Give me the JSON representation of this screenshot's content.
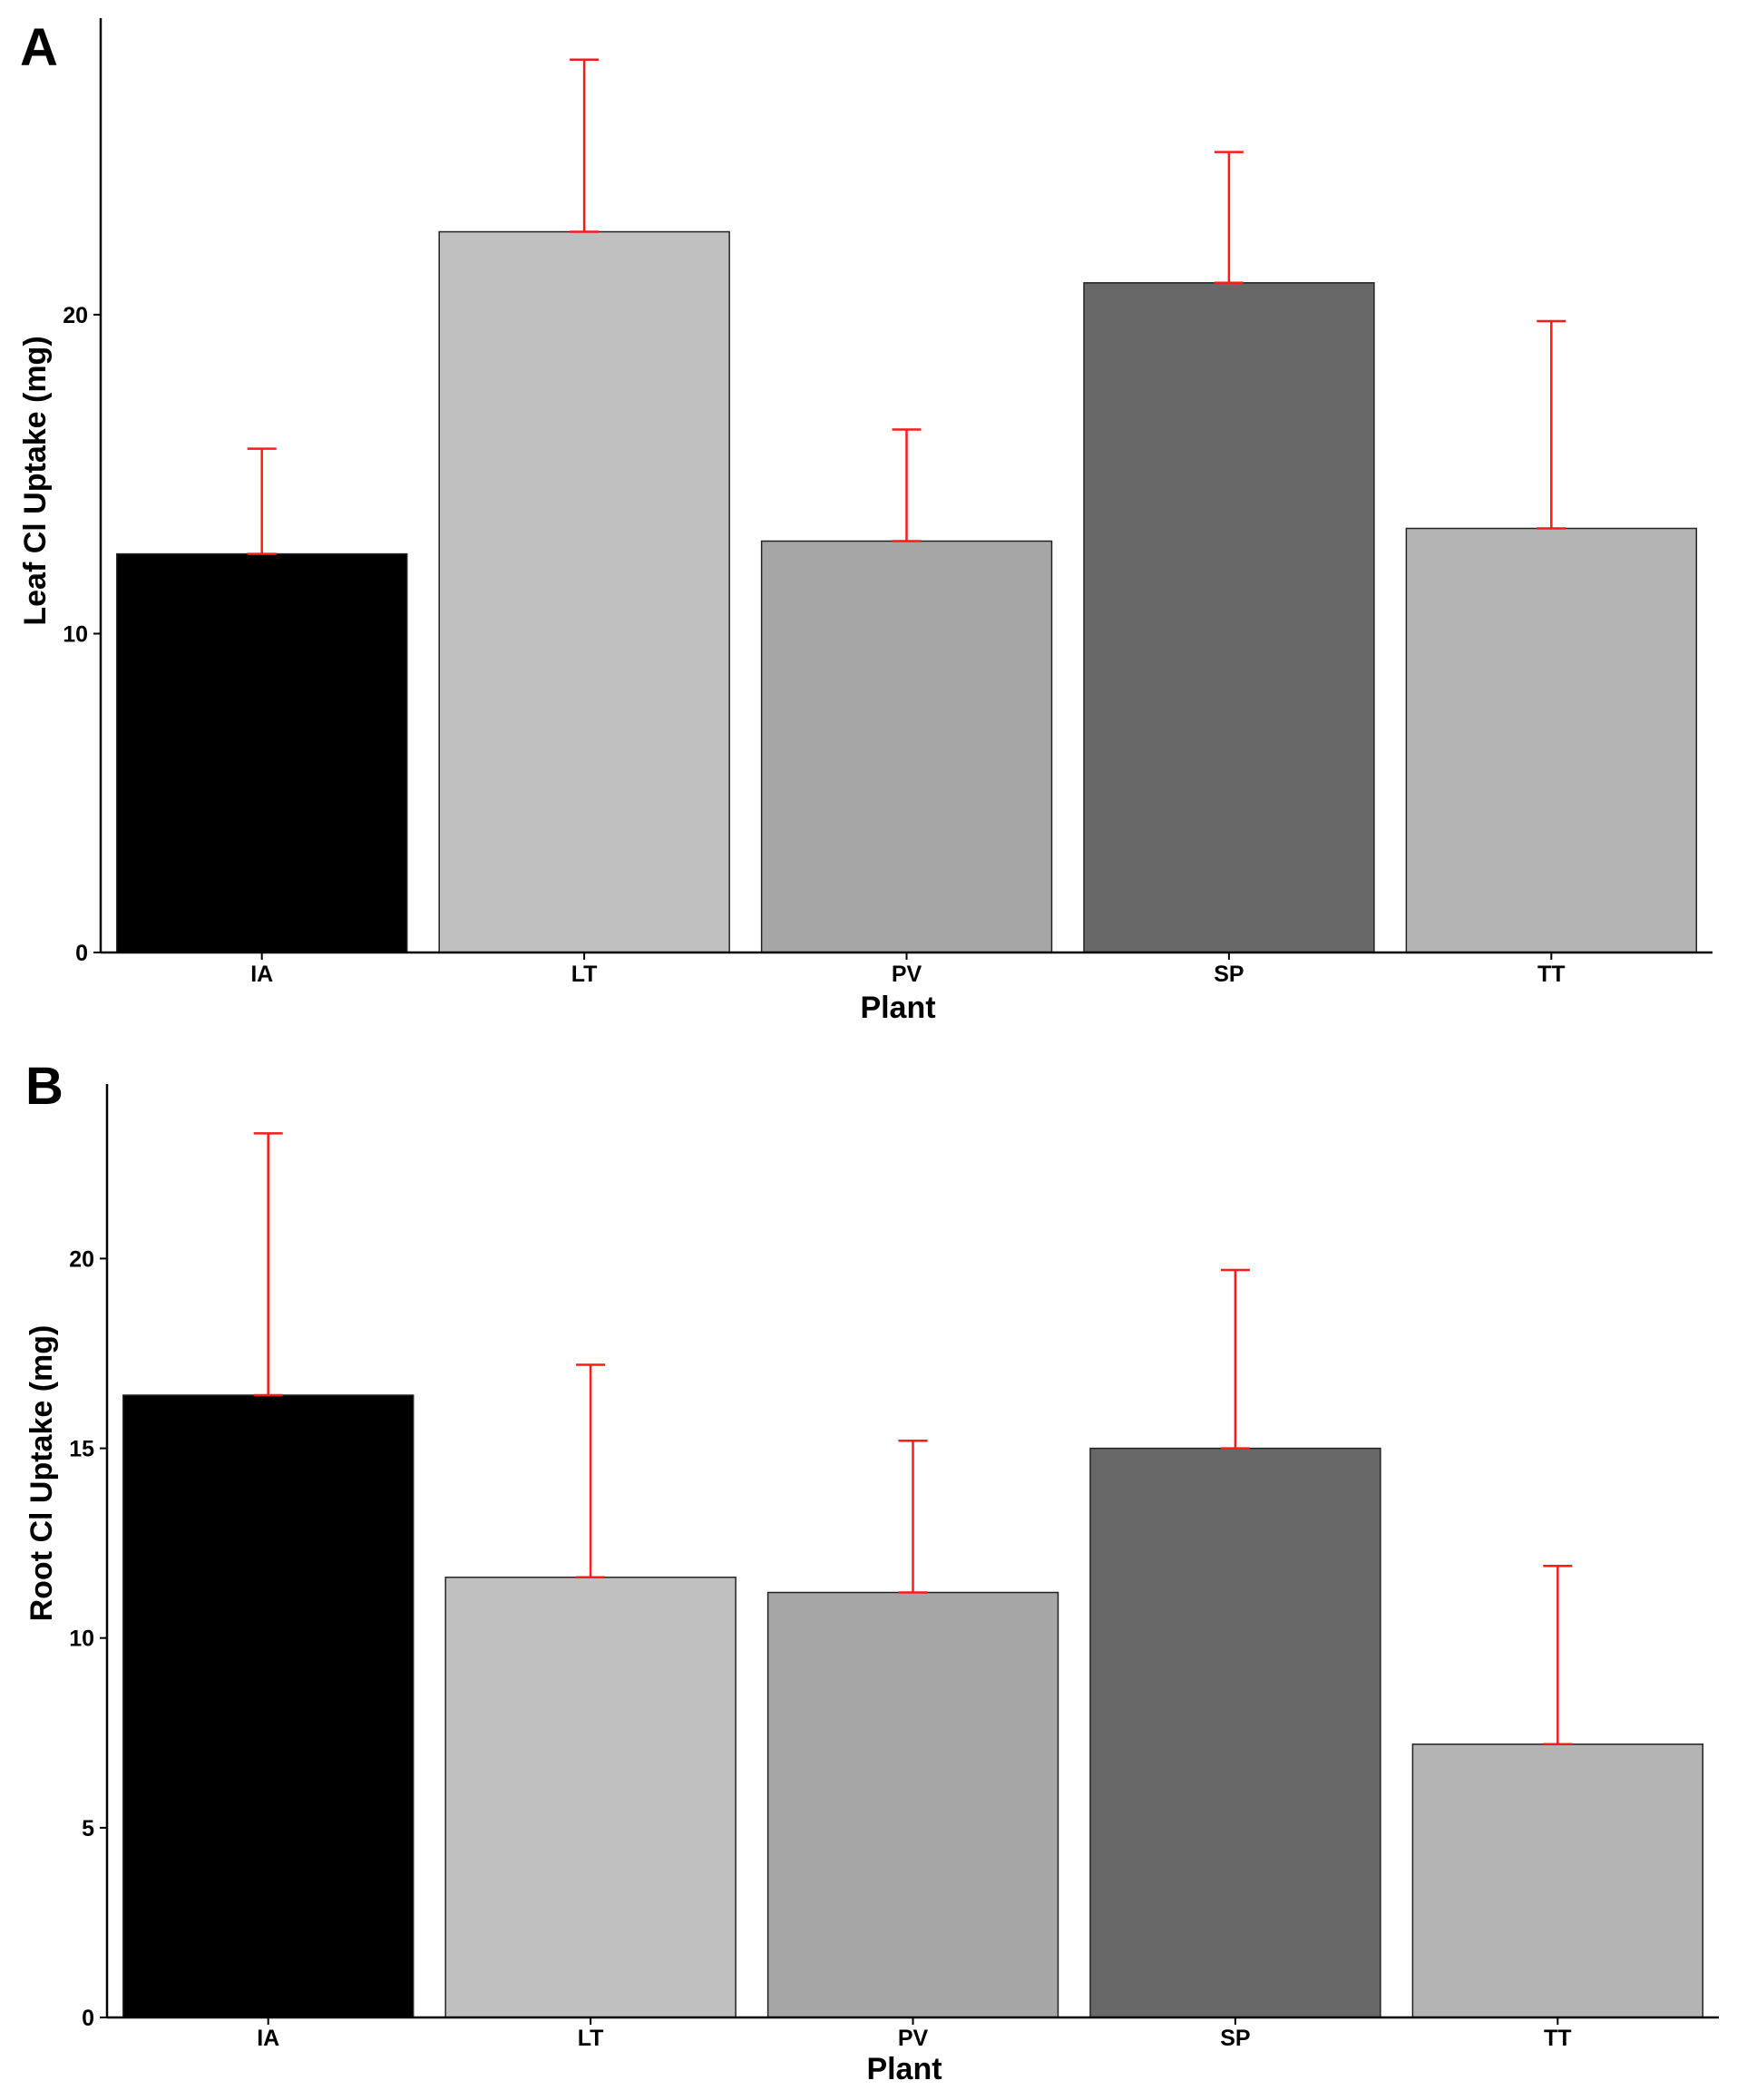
{
  "chart_data": [
    {
      "type": "bar",
      "panel_label": "A",
      "categories": [
        "IA",
        "LT",
        "PV",
        "SP",
        "TT"
      ],
      "values": [
        12.5,
        22.6,
        12.9,
        21.0,
        13.3
      ],
      "error_upper": [
        15.8,
        28.0,
        16.4,
        25.1,
        19.8
      ],
      "bar_colors": [
        "#000000",
        "#c0c0c0",
        "#a6a6a6",
        "#686868",
        "#b4b4b4"
      ],
      "error_color": "#ff1a1a",
      "title": "",
      "xlabel": "Plant",
      "ylabel": "Leaf Cl Uptake (mg)",
      "yticks": [
        0,
        10,
        20
      ],
      "ylim": [
        0,
        29.3
      ],
      "grid": false,
      "legend": "none"
    },
    {
      "type": "bar",
      "panel_label": "B",
      "categories": [
        "IA",
        "LT",
        "PV",
        "SP",
        "TT"
      ],
      "values": [
        16.4,
        11.6,
        11.2,
        15.0,
        7.2
      ],
      "error_upper": [
        23.3,
        17.2,
        15.2,
        19.7,
        11.9
      ],
      "bar_colors": [
        "#000000",
        "#c0c0c0",
        "#a6a6a6",
        "#686868",
        "#b4b4b4"
      ],
      "error_color": "#ff1a1a",
      "title": "",
      "xlabel": "Plant",
      "ylabel": "Root Cl Uptake (mg)",
      "yticks": [
        0,
        5,
        10,
        15,
        20
      ],
      "ylim": [
        0,
        24.6
      ],
      "grid": false,
      "legend": "none"
    }
  ]
}
